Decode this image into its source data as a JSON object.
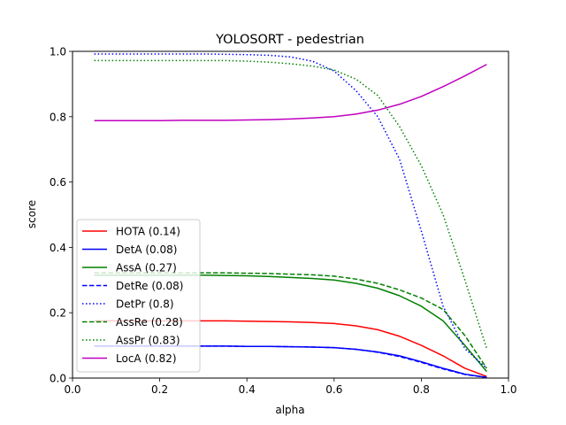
{
  "chart_data": {
    "type": "line",
    "title": "YOLOSORT - pedestrian",
    "xlabel": "alpha",
    "ylabel": "score",
    "xlim": [
      0.0,
      1.0
    ],
    "ylim": [
      0.0,
      1.0
    ],
    "xticks": [
      "0.0",
      "0.2",
      "0.4",
      "0.6",
      "0.8",
      "1.0"
    ],
    "yticks": [
      "0.0",
      "0.2",
      "0.4",
      "0.6",
      "0.8",
      "1.0"
    ],
    "grid": false,
    "legend_position": "lower-left",
    "x": [
      0.05,
      0.1,
      0.15,
      0.2,
      0.25,
      0.3,
      0.35,
      0.4,
      0.45,
      0.5,
      0.55,
      0.6,
      0.65,
      0.7,
      0.75,
      0.8,
      0.85,
      0.9,
      0.95
    ],
    "series": [
      {
        "name": "HOTA (0.14)",
        "color": "#ff0000",
        "dash": "solid",
        "values": [
          0.175,
          0.175,
          0.175,
          0.175,
          0.175,
          0.175,
          0.175,
          0.174,
          0.173,
          0.172,
          0.17,
          0.167,
          0.16,
          0.148,
          0.128,
          0.1,
          0.068,
          0.03,
          0.005
        ]
      },
      {
        "name": "DetA (0.08)",
        "color": "#0000ff",
        "dash": "solid",
        "values": [
          0.098,
          0.098,
          0.098,
          0.098,
          0.098,
          0.098,
          0.098,
          0.097,
          0.097,
          0.096,
          0.095,
          0.093,
          0.088,
          0.08,
          0.068,
          0.05,
          0.03,
          0.012,
          0.002
        ]
      },
      {
        "name": "AssA (0.27)",
        "color": "#008000",
        "dash": "solid",
        "values": [
          0.315,
          0.315,
          0.315,
          0.315,
          0.315,
          0.315,
          0.314,
          0.313,
          0.311,
          0.308,
          0.305,
          0.3,
          0.29,
          0.275,
          0.252,
          0.22,
          0.175,
          0.1,
          0.02
        ]
      },
      {
        "name": "DetRe (0.08)",
        "color": "#0000ff",
        "dash": "dashed",
        "values": [
          0.098,
          0.098,
          0.098,
          0.098,
          0.098,
          0.098,
          0.098,
          0.097,
          0.097,
          0.096,
          0.095,
          0.093,
          0.088,
          0.079,
          0.066,
          0.048,
          0.028,
          0.011,
          0.002
        ]
      },
      {
        "name": "DetPr (0.8)",
        "color": "#0000ff",
        "dash": "dotted",
        "values": [
          0.992,
          0.992,
          0.992,
          0.992,
          0.992,
          0.992,
          0.991,
          0.99,
          0.988,
          0.983,
          0.97,
          0.94,
          0.88,
          0.8,
          0.67,
          0.45,
          0.22,
          0.09,
          0.03
        ]
      },
      {
        "name": "AssRe (0.28)",
        "color": "#008000",
        "dash": "dashed",
        "values": [
          0.322,
          0.322,
          0.322,
          0.322,
          0.322,
          0.322,
          0.322,
          0.321,
          0.32,
          0.318,
          0.316,
          0.312,
          0.303,
          0.29,
          0.27,
          0.245,
          0.21,
          0.13,
          0.03
        ]
      },
      {
        "name": "AssPr (0.83)",
        "color": "#008000",
        "dash": "dotted",
        "values": [
          0.972,
          0.972,
          0.972,
          0.972,
          0.972,
          0.972,
          0.972,
          0.97,
          0.967,
          0.962,
          0.955,
          0.943,
          0.915,
          0.865,
          0.77,
          0.65,
          0.5,
          0.3,
          0.09
        ]
      },
      {
        "name": "LocA (0.82)",
        "color": "#bf00bf",
        "dash": "solid",
        "values": [
          0.788,
          0.788,
          0.788,
          0.788,
          0.789,
          0.789,
          0.789,
          0.79,
          0.791,
          0.793,
          0.796,
          0.8,
          0.808,
          0.82,
          0.838,
          0.862,
          0.892,
          0.925,
          0.96
        ]
      }
    ]
  }
}
